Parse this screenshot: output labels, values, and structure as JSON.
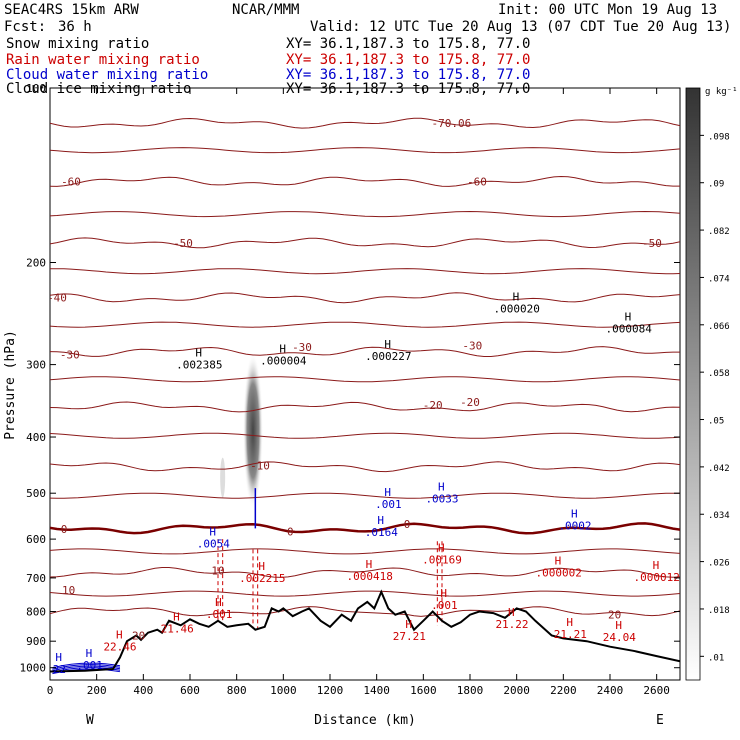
{
  "header": {
    "model": "SEAC4RS 15km ARW",
    "center": "NCAR/MMM",
    "init": "Init: 00 UTC Mon 19 Aug 13",
    "fcst_label": "Fcst:",
    "fcst_value": "36 h",
    "valid": "Valid: 12 UTC Tue 20 Aug 13 (07 CDT Tue 20 Aug 13)"
  },
  "fields": [
    {
      "name": "Snow mixing ratio",
      "xy": "XY=  36.1,187.3 to 175.8, 77.0",
      "color": "#000000"
    },
    {
      "name": "Rain water mixing ratio",
      "xy": "XY=  36.1,187.3 to 175.8, 77.0",
      "color": "#cc0000"
    },
    {
      "name": "Cloud water mixing ratio",
      "xy": "XY=  36.1,187.3 to 175.8, 77.0",
      "color": "#0000cc"
    },
    {
      "name": "Cloud ice mixing ratio",
      "xy": "XY=  36.1,187.3 to 175.8, 77.0",
      "color": "#000000"
    }
  ],
  "colors": {
    "temperature_contour": "#8b1a1a",
    "freezing_level": "#7a0000",
    "terrain": "#000000",
    "rain": "#cc0000",
    "cloud_water": "#0000cc"
  },
  "chart_data": {
    "type": "cross-section",
    "xlabel": "Distance (km)",
    "ylabel": "Pressure (hPa)",
    "xlim": [
      0,
      2700
    ],
    "ylim": [
      1050,
      100
    ],
    "yscale": "log",
    "x_ticks": [
      0,
      200,
      400,
      600,
      800,
      1000,
      1200,
      1400,
      1600,
      1800,
      2000,
      2200,
      2400,
      2600
    ],
    "y_ticks": [
      100,
      200,
      300,
      400,
      500,
      600,
      700,
      800,
      900,
      1000
    ],
    "x_ends": {
      "left": "W",
      "right": "E"
    },
    "colorbar": {
      "unit": "g kg⁻¹",
      "ticks": [
        ".01",
        ".018",
        ".026",
        ".034",
        ".042",
        ".05",
        ".058",
        ".066",
        ".074",
        ".082",
        ".09",
        ".098"
      ]
    },
    "temperature_contours": [
      {
        "label": "-70.06",
        "p": 115
      },
      {
        "label": "-60",
        "p": 145
      },
      {
        "label": "-50",
        "p": 185
      },
      {
        "label": "-40",
        "p": 230
      },
      {
        "label": "-30",
        "p": 285
      },
      {
        "label": "-20",
        "p": 355
      },
      {
        "label": "-10",
        "p": 450
      },
      {
        "label": "0",
        "p": 575
      },
      {
        "label": "10",
        "p": 685
      },
      {
        "label": "20",
        "p": 800
      }
    ],
    "contour_labels": [
      {
        "text": "-60",
        "x": 90,
        "p": 145
      },
      {
        "text": "-60",
        "x": 1830,
        "p": 145
      },
      {
        "text": "-50",
        "x": 570,
        "p": 185
      },
      {
        "text": "-50",
        "x": 2580,
        "p": 185
      },
      {
        "text": "-40",
        "x": 30,
        "p": 230
      },
      {
        "text": "-30",
        "x": 85,
        "p": 288
      },
      {
        "text": "-30",
        "x": 1080,
        "p": 280
      },
      {
        "text": "-30",
        "x": 1810,
        "p": 278
      },
      {
        "text": "-20",
        "x": 1640,
        "p": 352
      },
      {
        "text": "-20",
        "x": 1800,
        "p": 348
      },
      {
        "text": "-10",
        "x": 900,
        "p": 448
      },
      {
        "text": "0",
        "x": 60,
        "p": 576
      },
      {
        "text": "0",
        "x": 1530,
        "p": 565
      },
      {
        "text": "0",
        "x": 1030,
        "p": 582
      },
      {
        "text": "10",
        "x": 720,
        "p": 680
      },
      {
        "text": "10",
        "x": 80,
        "p": 735
      },
      {
        "text": "20",
        "x": 2420,
        "p": 810
      },
      {
        "text": "20",
        "x": 380,
        "p": 880
      }
    ],
    "extrema": [
      {
        "text": ".002385",
        "x": 640,
        "p": 300,
        "color": "black"
      },
      {
        "text": ".000004",
        "x": 1000,
        "p": 295,
        "color": "black"
      },
      {
        "text": ".000227",
        "x": 1450,
        "p": 290,
        "color": "black"
      },
      {
        "text": ".000020",
        "x": 2000,
        "p": 240,
        "color": "black"
      },
      {
        "text": ".000084",
        "x": 2480,
        "p": 260,
        "color": "black"
      },
      {
        "text": ".0054",
        "x": 700,
        "p": 610,
        "color": "blue"
      },
      {
        "text": ".001",
        "x": 1450,
        "p": 522,
        "color": "blue"
      },
      {
        "text": ".0033",
        "x": 1680,
        "p": 511,
        "color": "blue"
      },
      {
        "text": ".0164",
        "x": 1420,
        "p": 583,
        "color": "blue"
      },
      {
        "text": ".0002",
        "x": 2250,
        "p": 568,
        "color": "blue"
      },
      {
        "text": ".00169",
        "x": 1680,
        "p": 650,
        "color": "red"
      },
      {
        "text": ".002215",
        "x": 910,
        "p": 700,
        "color": "red"
      },
      {
        "text": ".000418",
        "x": 1370,
        "p": 695,
        "color": "red"
      },
      {
        "text": ".000002",
        "x": 2180,
        "p": 685,
        "color": "red"
      },
      {
        "text": ".000012",
        "x": 2600,
        "p": 697,
        "color": "red"
      },
      {
        "text": ".001",
        "x": 725,
        "p": 808,
        "color": "red"
      },
      {
        "text": ".001",
        "x": 1690,
        "p": 780,
        "color": "red"
      },
      {
        "text": "21.46",
        "x": 545,
        "p": 855,
        "color": "red"
      },
      {
        "text": "22.46",
        "x": 300,
        "p": 920,
        "color": "red"
      },
      {
        "text": "27.21",
        "x": 1540,
        "p": 882,
        "color": "red"
      },
      {
        "text": "21.22",
        "x": 1980,
        "p": 840,
        "color": "red"
      },
      {
        "text": "21.21",
        "x": 2230,
        "p": 875,
        "color": "red"
      },
      {
        "text": "24.04",
        "x": 2440,
        "p": 885,
        "color": "red"
      },
      {
        "text": ".001",
        "x": 170,
        "p": 990,
        "color": "blue"
      },
      {
        "text": "22",
        "x": 40,
        "p": 1005,
        "color": "blue"
      }
    ],
    "terrain": [
      [
        0,
        1015
      ],
      [
        150,
        1012
      ],
      [
        270,
        1005
      ],
      [
        300,
        960
      ],
      [
        330,
        900
      ],
      [
        370,
        880
      ],
      [
        390,
        895
      ],
      [
        420,
        870
      ],
      [
        460,
        860
      ],
      [
        480,
        870
      ],
      [
        510,
        830
      ],
      [
        560,
        845
      ],
      [
        600,
        825
      ],
      [
        640,
        840
      ],
      [
        680,
        850
      ],
      [
        720,
        830
      ],
      [
        760,
        850
      ],
      [
        800,
        845
      ],
      [
        850,
        840
      ],
      [
        880,
        860
      ],
      [
        920,
        850
      ],
      [
        950,
        790
      ],
      [
        980,
        800
      ],
      [
        1000,
        790
      ],
      [
        1040,
        815
      ],
      [
        1080,
        800
      ],
      [
        1110,
        790
      ],
      [
        1160,
        830
      ],
      [
        1200,
        850
      ],
      [
        1250,
        810
      ],
      [
        1290,
        830
      ],
      [
        1320,
        790
      ],
      [
        1360,
        770
      ],
      [
        1390,
        790
      ],
      [
        1420,
        740
      ],
      [
        1450,
        790
      ],
      [
        1480,
        810
      ],
      [
        1520,
        800
      ],
      [
        1560,
        860
      ],
      [
        1600,
        830
      ],
      [
        1640,
        800
      ],
      [
        1680,
        830
      ],
      [
        1720,
        850
      ],
      [
        1760,
        835
      ],
      [
        1800,
        810
      ],
      [
        1840,
        800
      ],
      [
        1900,
        805
      ],
      [
        1950,
        820
      ],
      [
        2000,
        790
      ],
      [
        2040,
        800
      ],
      [
        2080,
        830
      ],
      [
        2150,
        880
      ],
      [
        2200,
        890
      ],
      [
        2300,
        900
      ],
      [
        2400,
        920
      ],
      [
        2500,
        935
      ],
      [
        2600,
        955
      ],
      [
        2700,
        975
      ]
    ]
  }
}
